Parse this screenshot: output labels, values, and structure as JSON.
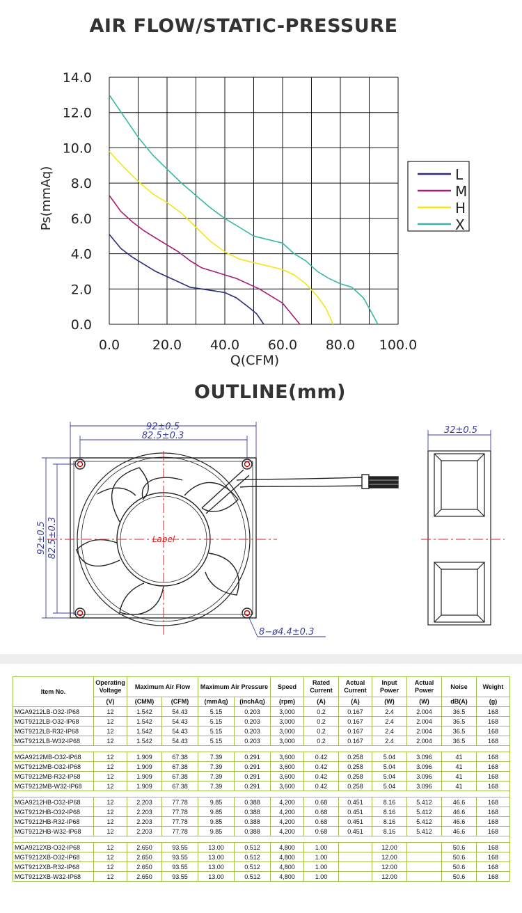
{
  "chart_title": "AIR FLOW/STATIC-PRESSURE",
  "outline_title": "OUTLINE(mm)",
  "chart_data": {
    "type": "line",
    "xlabel": "Q(CFM)",
    "ylabel": "Ps(mmAq)",
    "xlim": [
      0,
      100
    ],
    "ylim": [
      0,
      14
    ],
    "x_ticks": [
      "0.0",
      "20.0",
      "40.0",
      "60.0",
      "80.0",
      "100.0"
    ],
    "y_ticks": [
      "0.0",
      "2.0",
      "4.0",
      "6.0",
      "8.0",
      "10.0",
      "12.0",
      "14.0"
    ],
    "grid": true,
    "legend_position": "right",
    "series": [
      {
        "name": "L",
        "color": "#2b2d7c",
        "points": [
          [
            0,
            5.1
          ],
          [
            4,
            4.3
          ],
          [
            8,
            3.8
          ],
          [
            12,
            3.4
          ],
          [
            16,
            3.0
          ],
          [
            20,
            2.7
          ],
          [
            24,
            2.4
          ],
          [
            28,
            2.1
          ],
          [
            32,
            2.0
          ],
          [
            36,
            1.9
          ],
          [
            40,
            1.8
          ],
          [
            44,
            1.5
          ],
          [
            48,
            1.0
          ],
          [
            51,
            0.6
          ],
          [
            53.5,
            0
          ]
        ]
      },
      {
        "name": "M",
        "color": "#a11d7a",
        "points": [
          [
            0,
            7.3
          ],
          [
            4,
            6.4
          ],
          [
            8,
            5.8
          ],
          [
            12,
            5.3
          ],
          [
            16,
            4.9
          ],
          [
            20,
            4.5
          ],
          [
            24,
            4.1
          ],
          [
            28,
            3.6
          ],
          [
            32,
            3.2
          ],
          [
            36,
            3.0
          ],
          [
            40,
            2.8
          ],
          [
            44,
            2.6
          ],
          [
            48,
            2.3
          ],
          [
            52,
            2.0
          ],
          [
            56,
            1.6
          ],
          [
            60,
            1.2
          ],
          [
            63,
            0.6
          ],
          [
            66,
            0
          ]
        ]
      },
      {
        "name": "H",
        "color": "#f4e51c",
        "points": [
          [
            0,
            9.8
          ],
          [
            5,
            8.9
          ],
          [
            10,
            8.1
          ],
          [
            15,
            7.4
          ],
          [
            20,
            6.9
          ],
          [
            25,
            6.3
          ],
          [
            30,
            5.5
          ],
          [
            35,
            4.7
          ],
          [
            40,
            4.1
          ],
          [
            45,
            3.7
          ],
          [
            50,
            3.5
          ],
          [
            55,
            3.3
          ],
          [
            60,
            3.1
          ],
          [
            64,
            2.8
          ],
          [
            68,
            2.3
          ],
          [
            72,
            1.6
          ],
          [
            75,
            0.9
          ],
          [
            77.5,
            0
          ]
        ]
      },
      {
        "name": "X",
        "color": "#39b6a8",
        "points": [
          [
            0,
            13.0
          ],
          [
            5,
            11.8
          ],
          [
            10,
            10.6
          ],
          [
            15,
            9.6
          ],
          [
            20,
            8.8
          ],
          [
            25,
            8.0
          ],
          [
            30,
            7.3
          ],
          [
            35,
            6.6
          ],
          [
            40,
            6.0
          ],
          [
            45,
            5.5
          ],
          [
            50,
            5.0
          ],
          [
            55,
            4.8
          ],
          [
            60,
            4.6
          ],
          [
            64,
            4.0
          ],
          [
            68,
            3.6
          ],
          [
            72,
            3.0
          ],
          [
            76,
            2.6
          ],
          [
            80,
            2.3
          ],
          [
            84,
            2.1
          ],
          [
            88,
            1.5
          ],
          [
            91,
            0.6
          ],
          [
            93,
            0
          ]
        ]
      }
    ]
  },
  "outline": {
    "dim_top_outer": "92±0.5",
    "dim_top_inner": "82.5±0.3",
    "dim_left_outer": "92±0.5",
    "dim_left_inner": "82.5±0.3",
    "label": "Label",
    "hole_note": "8−ø4.4±0.3",
    "dim_side": "32±0.5"
  },
  "table": {
    "headers": {
      "item": "Item No.",
      "voltage": "Operating Voltage",
      "airflow": "Maximum Air Flow",
      "pressure": "Maximum Air Pressure",
      "speed": "Speed",
      "rated": "Rated Current",
      "actual_current": "Actual Current",
      "input": "Input Power",
      "actual_power": "Actual Power",
      "noise": "Noise",
      "weight": "Weight"
    },
    "units": [
      "(V)",
      "(CMM)",
      "(CFM)",
      "(mmAq)",
      "(inchAq)",
      "(rpm)",
      "(A)",
      "(A)",
      "(W)",
      "(W)",
      "dB(A)",
      "(g)"
    ],
    "groups": [
      [
        [
          "MGA9212LB-O32-IP68",
          "12",
          "1.542",
          "54.43",
          "5.15",
          "0.203",
          "3,000",
          "0.2",
          "0.167",
          "2.4",
          "2.004",
          "36.5",
          "168"
        ],
        [
          "MGT9212LB-O32-IP68",
          "12",
          "1.542",
          "54.43",
          "5.15",
          "0.203",
          "3,000",
          "0.2",
          "0.167",
          "2.4",
          "2.004",
          "36.5",
          "168"
        ],
        [
          "MGT9212LB-R32-IP68",
          "12",
          "1.542",
          "54.43",
          "5.15",
          "0.203",
          "3,000",
          "0.2",
          "0.167",
          "2.4",
          "2.004",
          "36.5",
          "168"
        ],
        [
          "MGT9212LB-W32-IP68",
          "12",
          "1.542",
          "54.43",
          "5.15",
          "0.203",
          "3,000",
          "0.2",
          "0.167",
          "2.4",
          "2.004",
          "36.5",
          "168"
        ]
      ],
      [
        [
          "MGA9212MB-O32-IP68",
          "12",
          "1.909",
          "67.38",
          "7.39",
          "0.291",
          "3,600",
          "0.42",
          "0.258",
          "5.04",
          "3.096",
          "41",
          "168"
        ],
        [
          "MGT9212MB-O32-IP68",
          "12",
          "1.909",
          "67.38",
          "7.39",
          "0.291",
          "3,600",
          "0.42",
          "0.258",
          "5.04",
          "3.096",
          "41",
          "168"
        ],
        [
          "MGT9212MB-R32-IP68",
          "12",
          "1.909",
          "67.38",
          "7.39",
          "0.291",
          "3,600",
          "0.42",
          "0.258",
          "5.04",
          "3.096",
          "41",
          "168"
        ],
        [
          "MGT9212MB-W32-IP68",
          "12",
          "1.909",
          "67.38",
          "7.39",
          "0.291",
          "3,600",
          "0.42",
          "0.258",
          "5.04",
          "3.096",
          "41",
          "168"
        ]
      ],
      [
        [
          "MGA9212HB-O32-IP68",
          "12",
          "2.203",
          "77.78",
          "9.85",
          "0.388",
          "4,200",
          "0.68",
          "0.451",
          "8.16",
          "5.412",
          "46.6",
          "168"
        ],
        [
          "MGT9212HB-O32-IP68",
          "12",
          "2.203",
          "77.78",
          "9.85",
          "0.388",
          "4,200",
          "0.68",
          "0.451",
          "8.16",
          "5.412",
          "46.6",
          "168"
        ],
        [
          "MGT9212HB-R32-IP68",
          "12",
          "2.203",
          "77.78",
          "9.85",
          "0.388",
          "4,200",
          "0.68",
          "0.451",
          "8.16",
          "5.412",
          "46.6",
          "168"
        ],
        [
          "MGT9212HB-W32-IP68",
          "12",
          "2.203",
          "77.78",
          "9.85",
          "0.388",
          "4,200",
          "0.68",
          "0.451",
          "8.16",
          "5.412",
          "46.6",
          "168"
        ]
      ],
      [
        [
          "MGA9212XB-O32-IP68",
          "12",
          "2.650",
          "93.55",
          "13.00",
          "0.512",
          "4,800",
          "1.00",
          "",
          "12.00",
          "",
          "50.6",
          "168"
        ],
        [
          "MGT9212XB-O32-IP68",
          "12",
          "2.650",
          "93.55",
          "13.00",
          "0.512",
          "4,800",
          "1.00",
          "",
          "12.00",
          "",
          "50.6",
          "168"
        ],
        [
          "MGT9212XB-R32-IP68",
          "12",
          "2.650",
          "93.55",
          "13.00",
          "0.512",
          "4,800",
          "1.00",
          "",
          "12.00",
          "",
          "50.6",
          "168"
        ],
        [
          "MGT9212XB-W32-IP68",
          "12",
          "2.650",
          "93.55",
          "13.00",
          "0.512",
          "4,800",
          "1.00",
          "",
          "12.00",
          "",
          "50.6",
          "168"
        ]
      ]
    ]
  }
}
